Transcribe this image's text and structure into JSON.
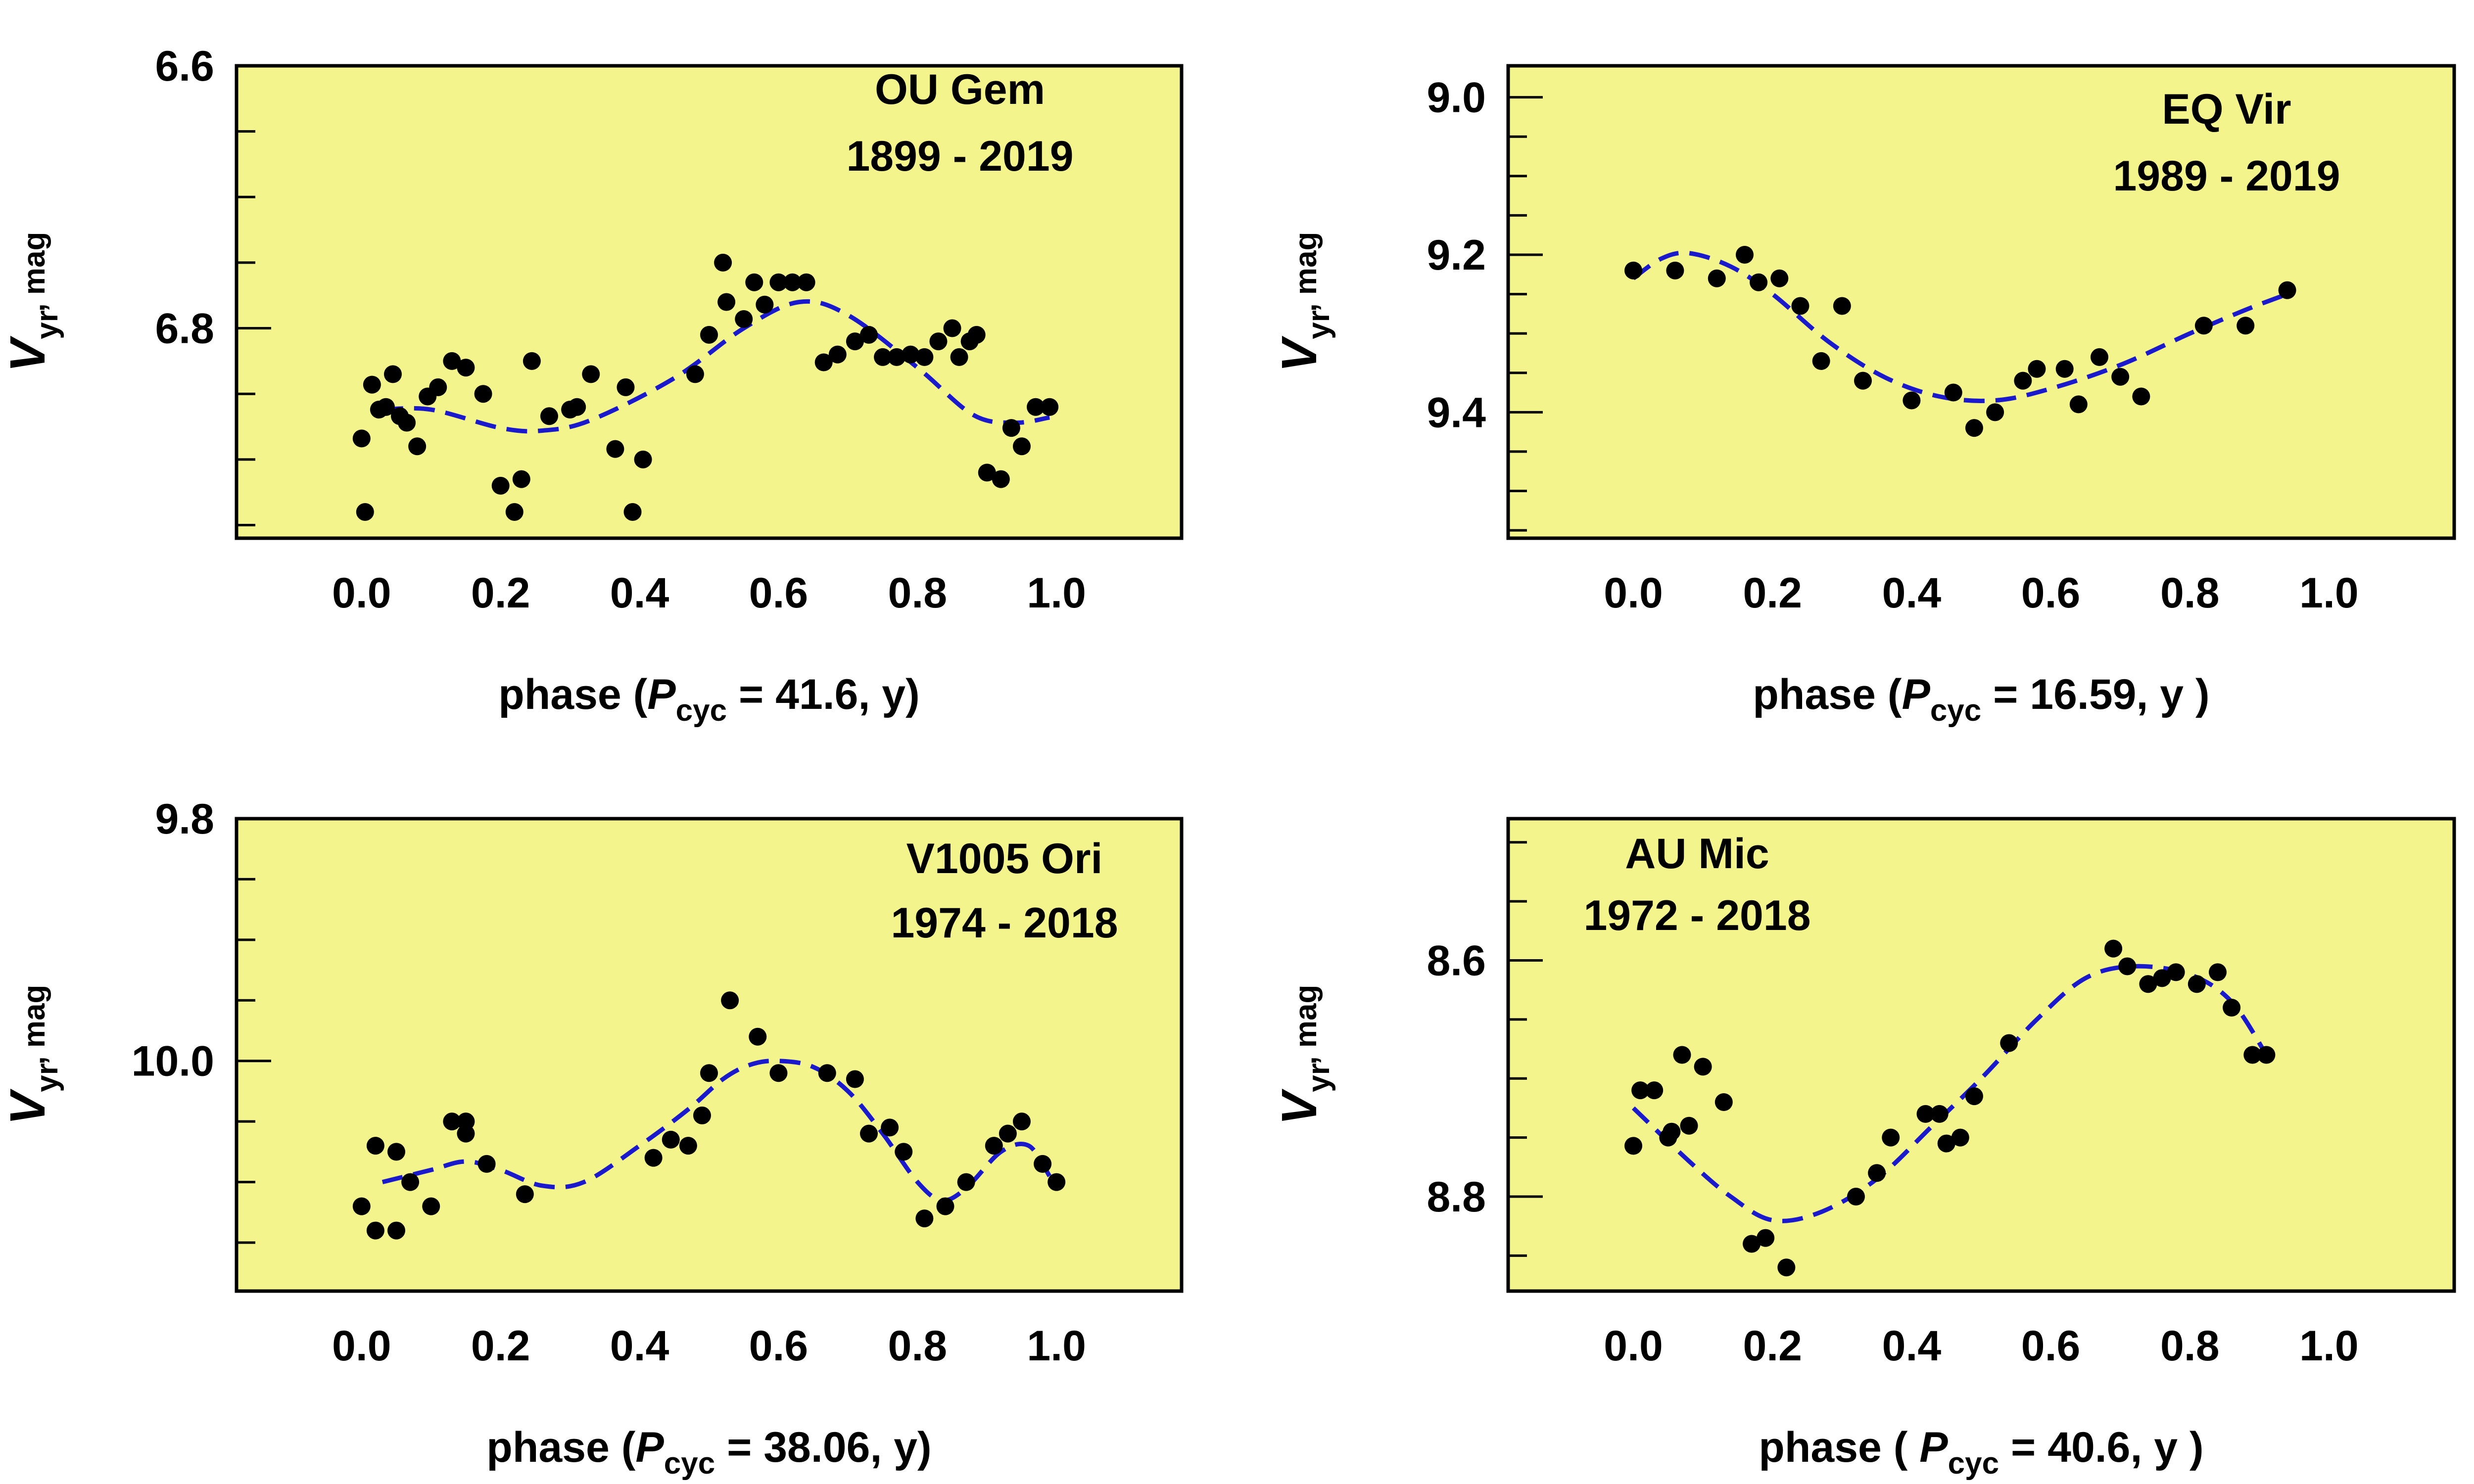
{
  "chart_data": [
    {
      "type": "scatter",
      "star": "OU Gem",
      "years": "1899 - 2019",
      "ylabel_main": "V",
      "ylabel_sub": "yr",
      "ylabel_unit": ", mag",
      "xlabel_pre": "phase (",
      "xlabel_var": "P",
      "xlabel_sub": "cyc",
      "xlabel_post": " = 41.6, y)",
      "xlim": [
        -0.18,
        1.18
      ],
      "ylim": [
        6.6,
        6.96
      ],
      "yticks_major": [
        6.6,
        6.8
      ],
      "ytick_labels": [
        "6.6",
        "6.8"
      ],
      "xticks": [
        0.0,
        0.2,
        0.4,
        0.6,
        0.8,
        1.0
      ],
      "xtick_labels": [
        "0.0",
        "0.2",
        "0.4",
        "0.6",
        "0.8",
        "1.0"
      ],
      "points": [
        [
          0.0,
          6.884
        ],
        [
          0.005,
          6.94
        ],
        [
          0.015,
          6.843
        ],
        [
          0.025,
          6.862
        ],
        [
          0.035,
          6.86
        ],
        [
          0.045,
          6.835
        ],
        [
          0.055,
          6.867
        ],
        [
          0.065,
          6.872
        ],
        [
          0.08,
          6.89
        ],
        [
          0.095,
          6.852
        ],
        [
          0.11,
          6.845
        ],
        [
          0.13,
          6.825
        ],
        [
          0.15,
          6.83
        ],
        [
          0.175,
          6.85
        ],
        [
          0.2,
          6.92
        ],
        [
          0.22,
          6.94
        ],
        [
          0.23,
          6.915
        ],
        [
          0.245,
          6.825
        ],
        [
          0.27,
          6.867
        ],
        [
          0.3,
          6.862
        ],
        [
          0.31,
          6.86
        ],
        [
          0.33,
          6.835
        ],
        [
          0.365,
          6.892
        ],
        [
          0.38,
          6.845
        ],
        [
          0.39,
          6.94
        ],
        [
          0.405,
          6.9
        ],
        [
          0.48,
          6.835
        ],
        [
          0.5,
          6.805
        ],
        [
          0.52,
          6.75
        ],
        [
          0.525,
          6.78
        ],
        [
          0.55,
          6.793
        ],
        [
          0.565,
          6.765
        ],
        [
          0.58,
          6.782
        ],
        [
          0.6,
          6.765
        ],
        [
          0.62,
          6.765
        ],
        [
          0.64,
          6.765
        ],
        [
          0.665,
          6.826
        ],
        [
          0.685,
          6.82
        ],
        [
          0.71,
          6.81
        ],
        [
          0.73,
          6.805
        ],
        [
          0.75,
          6.822
        ],
        [
          0.77,
          6.822
        ],
        [
          0.79,
          6.82
        ],
        [
          0.81,
          6.822
        ],
        [
          0.83,
          6.81
        ],
        [
          0.85,
          6.8
        ],
        [
          0.86,
          6.822
        ],
        [
          0.875,
          6.81
        ],
        [
          0.885,
          6.805
        ],
        [
          0.9,
          6.91
        ],
        [
          0.92,
          6.915
        ],
        [
          0.935,
          6.876
        ],
        [
          0.95,
          6.89
        ],
        [
          0.97,
          6.86
        ],
        [
          0.99,
          6.86
        ]
      ],
      "fit_curve": [
        [
          0.03,
          6.862
        ],
        [
          0.1,
          6.862
        ],
        [
          0.2,
          6.876
        ],
        [
          0.26,
          6.878
        ],
        [
          0.33,
          6.87
        ],
        [
          0.45,
          6.838
        ],
        [
          0.55,
          6.8
        ],
        [
          0.63,
          6.78
        ],
        [
          0.7,
          6.79
        ],
        [
          0.8,
          6.83
        ],
        [
          0.88,
          6.866
        ],
        [
          0.94,
          6.872
        ],
        [
          0.99,
          6.868
        ]
      ]
    },
    {
      "type": "scatter",
      "star": "EQ Vir",
      "years": "1989 - 2019",
      "ylabel_main": "V",
      "ylabel_sub": "yr",
      "ylabel_unit": ", mag",
      "xlabel_pre": "phase (",
      "xlabel_var": "P",
      "xlabel_sub": "cyc",
      "xlabel_post": " = 16.59, y )",
      "xlim": [
        -0.18,
        1.18
      ],
      "ylim": [
        8.96,
        9.56
      ],
      "yticks_major": [
        9.0,
        9.2,
        9.4
      ],
      "ytick_labels": [
        "9.0",
        "9.2",
        "9.4"
      ],
      "xticks": [
        0.0,
        0.2,
        0.4,
        0.6,
        0.8,
        1.0
      ],
      "xtick_labels": [
        "0.0",
        "0.2",
        "0.4",
        "0.6",
        "0.8",
        "1.0"
      ],
      "points": [
        [
          0.0,
          9.22
        ],
        [
          0.06,
          9.22
        ],
        [
          0.12,
          9.23
        ],
        [
          0.16,
          9.2
        ],
        [
          0.18,
          9.235
        ],
        [
          0.21,
          9.23
        ],
        [
          0.24,
          9.265
        ],
        [
          0.27,
          9.335
        ],
        [
          0.3,
          9.265
        ],
        [
          0.33,
          9.36
        ],
        [
          0.4,
          9.385
        ],
        [
          0.46,
          9.375
        ],
        [
          0.49,
          9.42
        ],
        [
          0.52,
          9.4
        ],
        [
          0.56,
          9.36
        ],
        [
          0.58,
          9.345
        ],
        [
          0.62,
          9.345
        ],
        [
          0.64,
          9.39
        ],
        [
          0.67,
          9.33
        ],
        [
          0.7,
          9.355
        ],
        [
          0.73,
          9.38
        ],
        [
          0.82,
          9.29
        ],
        [
          0.88,
          9.29
        ],
        [
          0.94,
          9.245
        ]
      ],
      "fit_curve": [
        [
          0.0,
          9.23
        ],
        [
          0.04,
          9.205
        ],
        [
          0.08,
          9.198
        ],
        [
          0.14,
          9.215
        ],
        [
          0.2,
          9.25
        ],
        [
          0.28,
          9.31
        ],
        [
          0.36,
          9.355
        ],
        [
          0.44,
          9.38
        ],
        [
          0.52,
          9.385
        ],
        [
          0.6,
          9.37
        ],
        [
          0.7,
          9.34
        ],
        [
          0.8,
          9.3
        ],
        [
          0.88,
          9.27
        ],
        [
          0.94,
          9.25
        ]
      ]
    },
    {
      "type": "scatter",
      "star": "V1005 Ori",
      "years": "1974 - 2018",
      "ylabel_main": "V",
      "ylabel_sub": "yr",
      "ylabel_unit": ", mag",
      "xlabel_pre": "phase (",
      "xlabel_var": "P",
      "xlabel_sub": "cyc",
      "xlabel_post": " = 38.06, y)",
      "xlim": [
        -0.18,
        1.18
      ],
      "ylim": [
        9.8,
        10.19
      ],
      "yticks_major": [
        9.8,
        10.0
      ],
      "ytick_labels": [
        "9.8",
        "10.0"
      ],
      "xticks": [
        0.0,
        0.2,
        0.4,
        0.6,
        0.8,
        1.0
      ],
      "xtick_labels": [
        "0.0",
        "0.2",
        "0.4",
        "0.6",
        "0.8",
        "1.0"
      ],
      "points": [
        [
          0.0,
          10.12
        ],
        [
          0.02,
          10.14
        ],
        [
          0.02,
          10.07
        ],
        [
          0.05,
          10.14
        ],
        [
          0.05,
          10.075
        ],
        [
          0.07,
          10.1
        ],
        [
          0.1,
          10.12
        ],
        [
          0.13,
          10.05
        ],
        [
          0.15,
          10.05
        ],
        [
          0.15,
          10.06
        ],
        [
          0.18,
          10.085
        ],
        [
          0.235,
          10.11
        ],
        [
          0.42,
          10.08
        ],
        [
          0.445,
          10.065
        ],
        [
          0.47,
          10.07
        ],
        [
          0.49,
          10.045
        ],
        [
          0.5,
          10.01
        ],
        [
          0.53,
          9.95
        ],
        [
          0.57,
          9.98
        ],
        [
          0.6,
          10.01
        ],
        [
          0.67,
          10.01
        ],
        [
          0.71,
          10.015
        ],
        [
          0.73,
          10.06
        ],
        [
          0.76,
          10.055
        ],
        [
          0.78,
          10.075
        ],
        [
          0.81,
          10.13
        ],
        [
          0.84,
          10.12
        ],
        [
          0.87,
          10.1
        ],
        [
          0.91,
          10.07
        ],
        [
          0.93,
          10.06
        ],
        [
          0.95,
          10.05
        ],
        [
          0.98,
          10.085
        ],
        [
          1.0,
          10.1
        ]
      ],
      "fit_curve": [
        [
          0.03,
          10.1
        ],
        [
          0.1,
          10.09
        ],
        [
          0.15,
          10.083
        ],
        [
          0.2,
          10.09
        ],
        [
          0.26,
          10.103
        ],
        [
          0.32,
          10.1
        ],
        [
          0.4,
          10.07
        ],
        [
          0.47,
          10.04
        ],
        [
          0.52,
          10.015
        ],
        [
          0.56,
          10.003
        ],
        [
          0.6,
          10.0
        ],
        [
          0.65,
          10.005
        ],
        [
          0.7,
          10.025
        ],
        [
          0.75,
          10.06
        ],
        [
          0.8,
          10.1
        ],
        [
          0.835,
          10.115
        ],
        [
          0.87,
          10.105
        ],
        [
          0.92,
          10.075
        ],
        [
          0.96,
          10.07
        ],
        [
          0.99,
          10.095
        ]
      ]
    },
    {
      "type": "scatter",
      "star": "AU Mic",
      "years": "1972 - 2018",
      "ylabel_main": "V",
      "ylabel_sub": "yr",
      "ylabel_unit": ", mag",
      "xlabel_pre": "phase ( ",
      "xlabel_var": "P",
      "xlabel_sub": "cyc",
      "xlabel_post": " = 40.6, y )",
      "xlim": [
        -0.18,
        1.18
      ],
      "ylim": [
        8.48,
        8.88
      ],
      "yticks_major": [
        8.6,
        8.8
      ],
      "ytick_labels": [
        "8.6",
        "8.8"
      ],
      "xticks": [
        0.0,
        0.2,
        0.4,
        0.6,
        0.8,
        1.0
      ],
      "xtick_labels": [
        "0.0",
        "0.2",
        "0.4",
        "0.6",
        "0.8",
        "1.0"
      ],
      "points": [
        [
          0.0,
          8.757
        ],
        [
          0.01,
          8.71
        ],
        [
          0.03,
          8.71
        ],
        [
          0.05,
          8.75
        ],
        [
          0.055,
          8.745
        ],
        [
          0.07,
          8.68
        ],
        [
          0.08,
          8.74
        ],
        [
          0.1,
          8.69
        ],
        [
          0.13,
          8.72
        ],
        [
          0.17,
          8.84
        ],
        [
          0.19,
          8.835
        ],
        [
          0.22,
          8.86
        ],
        [
          0.32,
          8.8
        ],
        [
          0.35,
          8.78
        ],
        [
          0.37,
          8.75
        ],
        [
          0.42,
          8.73
        ],
        [
          0.44,
          8.73
        ],
        [
          0.45,
          8.755
        ],
        [
          0.47,
          8.75
        ],
        [
          0.49,
          8.715
        ],
        [
          0.54,
          8.67
        ],
        [
          0.69,
          8.59
        ],
        [
          0.71,
          8.605
        ],
        [
          0.74,
          8.62
        ],
        [
          0.76,
          8.615
        ],
        [
          0.78,
          8.61
        ],
        [
          0.81,
          8.62
        ],
        [
          0.84,
          8.61
        ],
        [
          0.86,
          8.64
        ],
        [
          0.89,
          8.68
        ],
        [
          0.91,
          8.68
        ]
      ],
      "fit_curve": [
        [
          0.0,
          8.725
        ],
        [
          0.08,
          8.77
        ],
        [
          0.14,
          8.8
        ],
        [
          0.2,
          8.82
        ],
        [
          0.27,
          8.813
        ],
        [
          0.35,
          8.785
        ],
        [
          0.43,
          8.74
        ],
        [
          0.5,
          8.7
        ],
        [
          0.58,
          8.65
        ],
        [
          0.65,
          8.615
        ],
        [
          0.72,
          8.605
        ],
        [
          0.8,
          8.612
        ],
        [
          0.86,
          8.635
        ],
        [
          0.91,
          8.68
        ]
      ]
    }
  ]
}
